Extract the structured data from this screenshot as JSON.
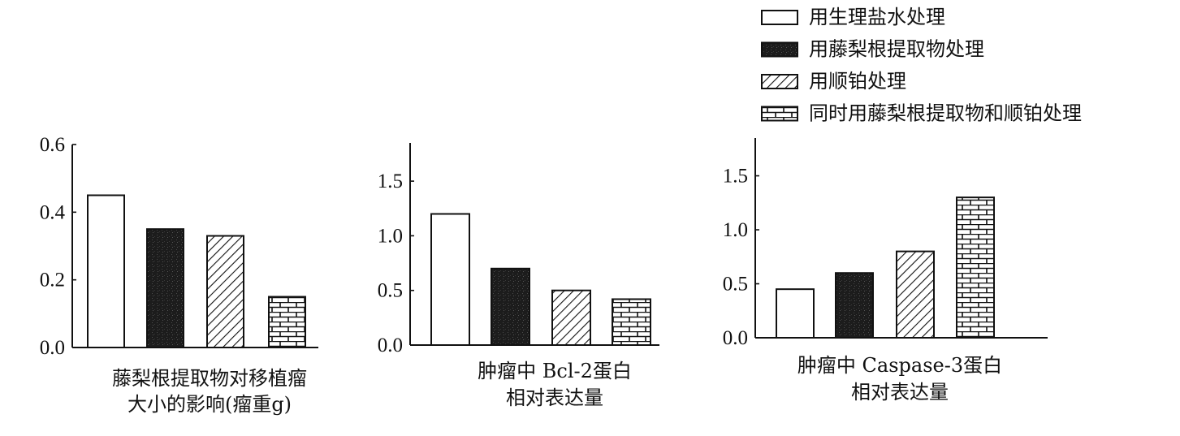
{
  "legend": [
    {
      "label": "用生理盐水处理",
      "pattern": "plain"
    },
    {
      "label": "用藤梨根提取物处理",
      "pattern": "dark"
    },
    {
      "label": "用顺铂处理",
      "pattern": "hatch"
    },
    {
      "label": "同时用藤梨根提取物和顺铂处理",
      "pattern": "brick"
    }
  ],
  "chart_data": [
    {
      "type": "bar",
      "title_lines": [
        "藤梨根提取物对移植瘤",
        "大小的影响(瘤重g)"
      ],
      "categories": [
        "用生理盐水处理",
        "用藤梨根提取物处理",
        "用顺铂处理",
        "同时用藤梨根提取物和顺铂处理"
      ],
      "values": [
        0.45,
        0.35,
        0.33,
        0.15
      ],
      "ylim": [
        0,
        0.6
      ],
      "yticks": [
        "0.0",
        "0.2",
        "0.4",
        "0.6"
      ],
      "ytick_values": [
        0,
        0.2,
        0.4,
        0.6
      ]
    },
    {
      "type": "bar",
      "title_lines": [
        "肿瘤中 Bcl-2蛋白",
        "相对表达量"
      ],
      "categories": [
        "用生理盐水处理",
        "用藤梨根提取物处理",
        "用顺铂处理",
        "同时用藤梨根提取物和顺铂处理"
      ],
      "values": [
        1.2,
        0.7,
        0.5,
        0.42
      ],
      "ylim": [
        0,
        1.85
      ],
      "yticks": [
        "0.0",
        "0.5",
        "1.0",
        "1.5"
      ],
      "ytick_values": [
        0,
        0.5,
        1.0,
        1.5
      ]
    },
    {
      "type": "bar",
      "title_lines": [
        "肿瘤中 Caspase-3蛋白",
        "相对表达量"
      ],
      "categories": [
        "用生理盐水处理",
        "用藤梨根提取物处理",
        "用顺铂处理",
        "同时用藤梨根提取物和顺铂处理"
      ],
      "values": [
        0.45,
        0.6,
        0.8,
        1.3
      ],
      "ylim": [
        0,
        1.85
      ],
      "yticks": [
        "0.0",
        "0.5",
        "1.0",
        "1.5"
      ],
      "ytick_values": [
        0,
        0.5,
        1.0,
        1.5
      ]
    }
  ]
}
